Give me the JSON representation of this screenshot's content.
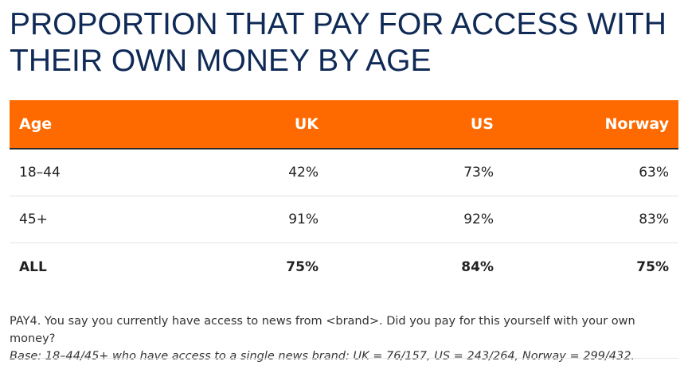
{
  "chart_data": {
    "type": "table",
    "title": "PROPORTION THAT PAY FOR ACCESS WITH THEIR OWN MONEY BY AGE",
    "columns": [
      "Age",
      "UK",
      "US",
      "Norway"
    ],
    "rows": [
      {
        "label": "18–44",
        "values": [
          "42%",
          "73%",
          "63%"
        ],
        "bold": false
      },
      {
        "label": "45+",
        "values": [
          "91%",
          "92%",
          "83%"
        ],
        "bold": false
      },
      {
        "label": "ALL",
        "values": [
          "75%",
          "84%",
          "75%"
        ],
        "bold": true
      }
    ],
    "numeric_values": {
      "18–44": {
        "UK": 42,
        "US": 73,
        "Norway": 63
      },
      "45+": {
        "UK": 91,
        "US": 92,
        "Norway": 83
      },
      "ALL": {
        "UK": 75,
        "US": 84,
        "Norway": 75
      }
    },
    "header_color": "#ff6a00",
    "title_color": "#0f2a56"
  },
  "footer": {
    "question": "PAY4. You say you currently have access to news from <brand>. Did you pay for this yourself with your own money?",
    "base": "Base: 18–44/45+ who have access to a single news brand: UK = 76/157, US = 243/264, Norway = 299/432."
  }
}
